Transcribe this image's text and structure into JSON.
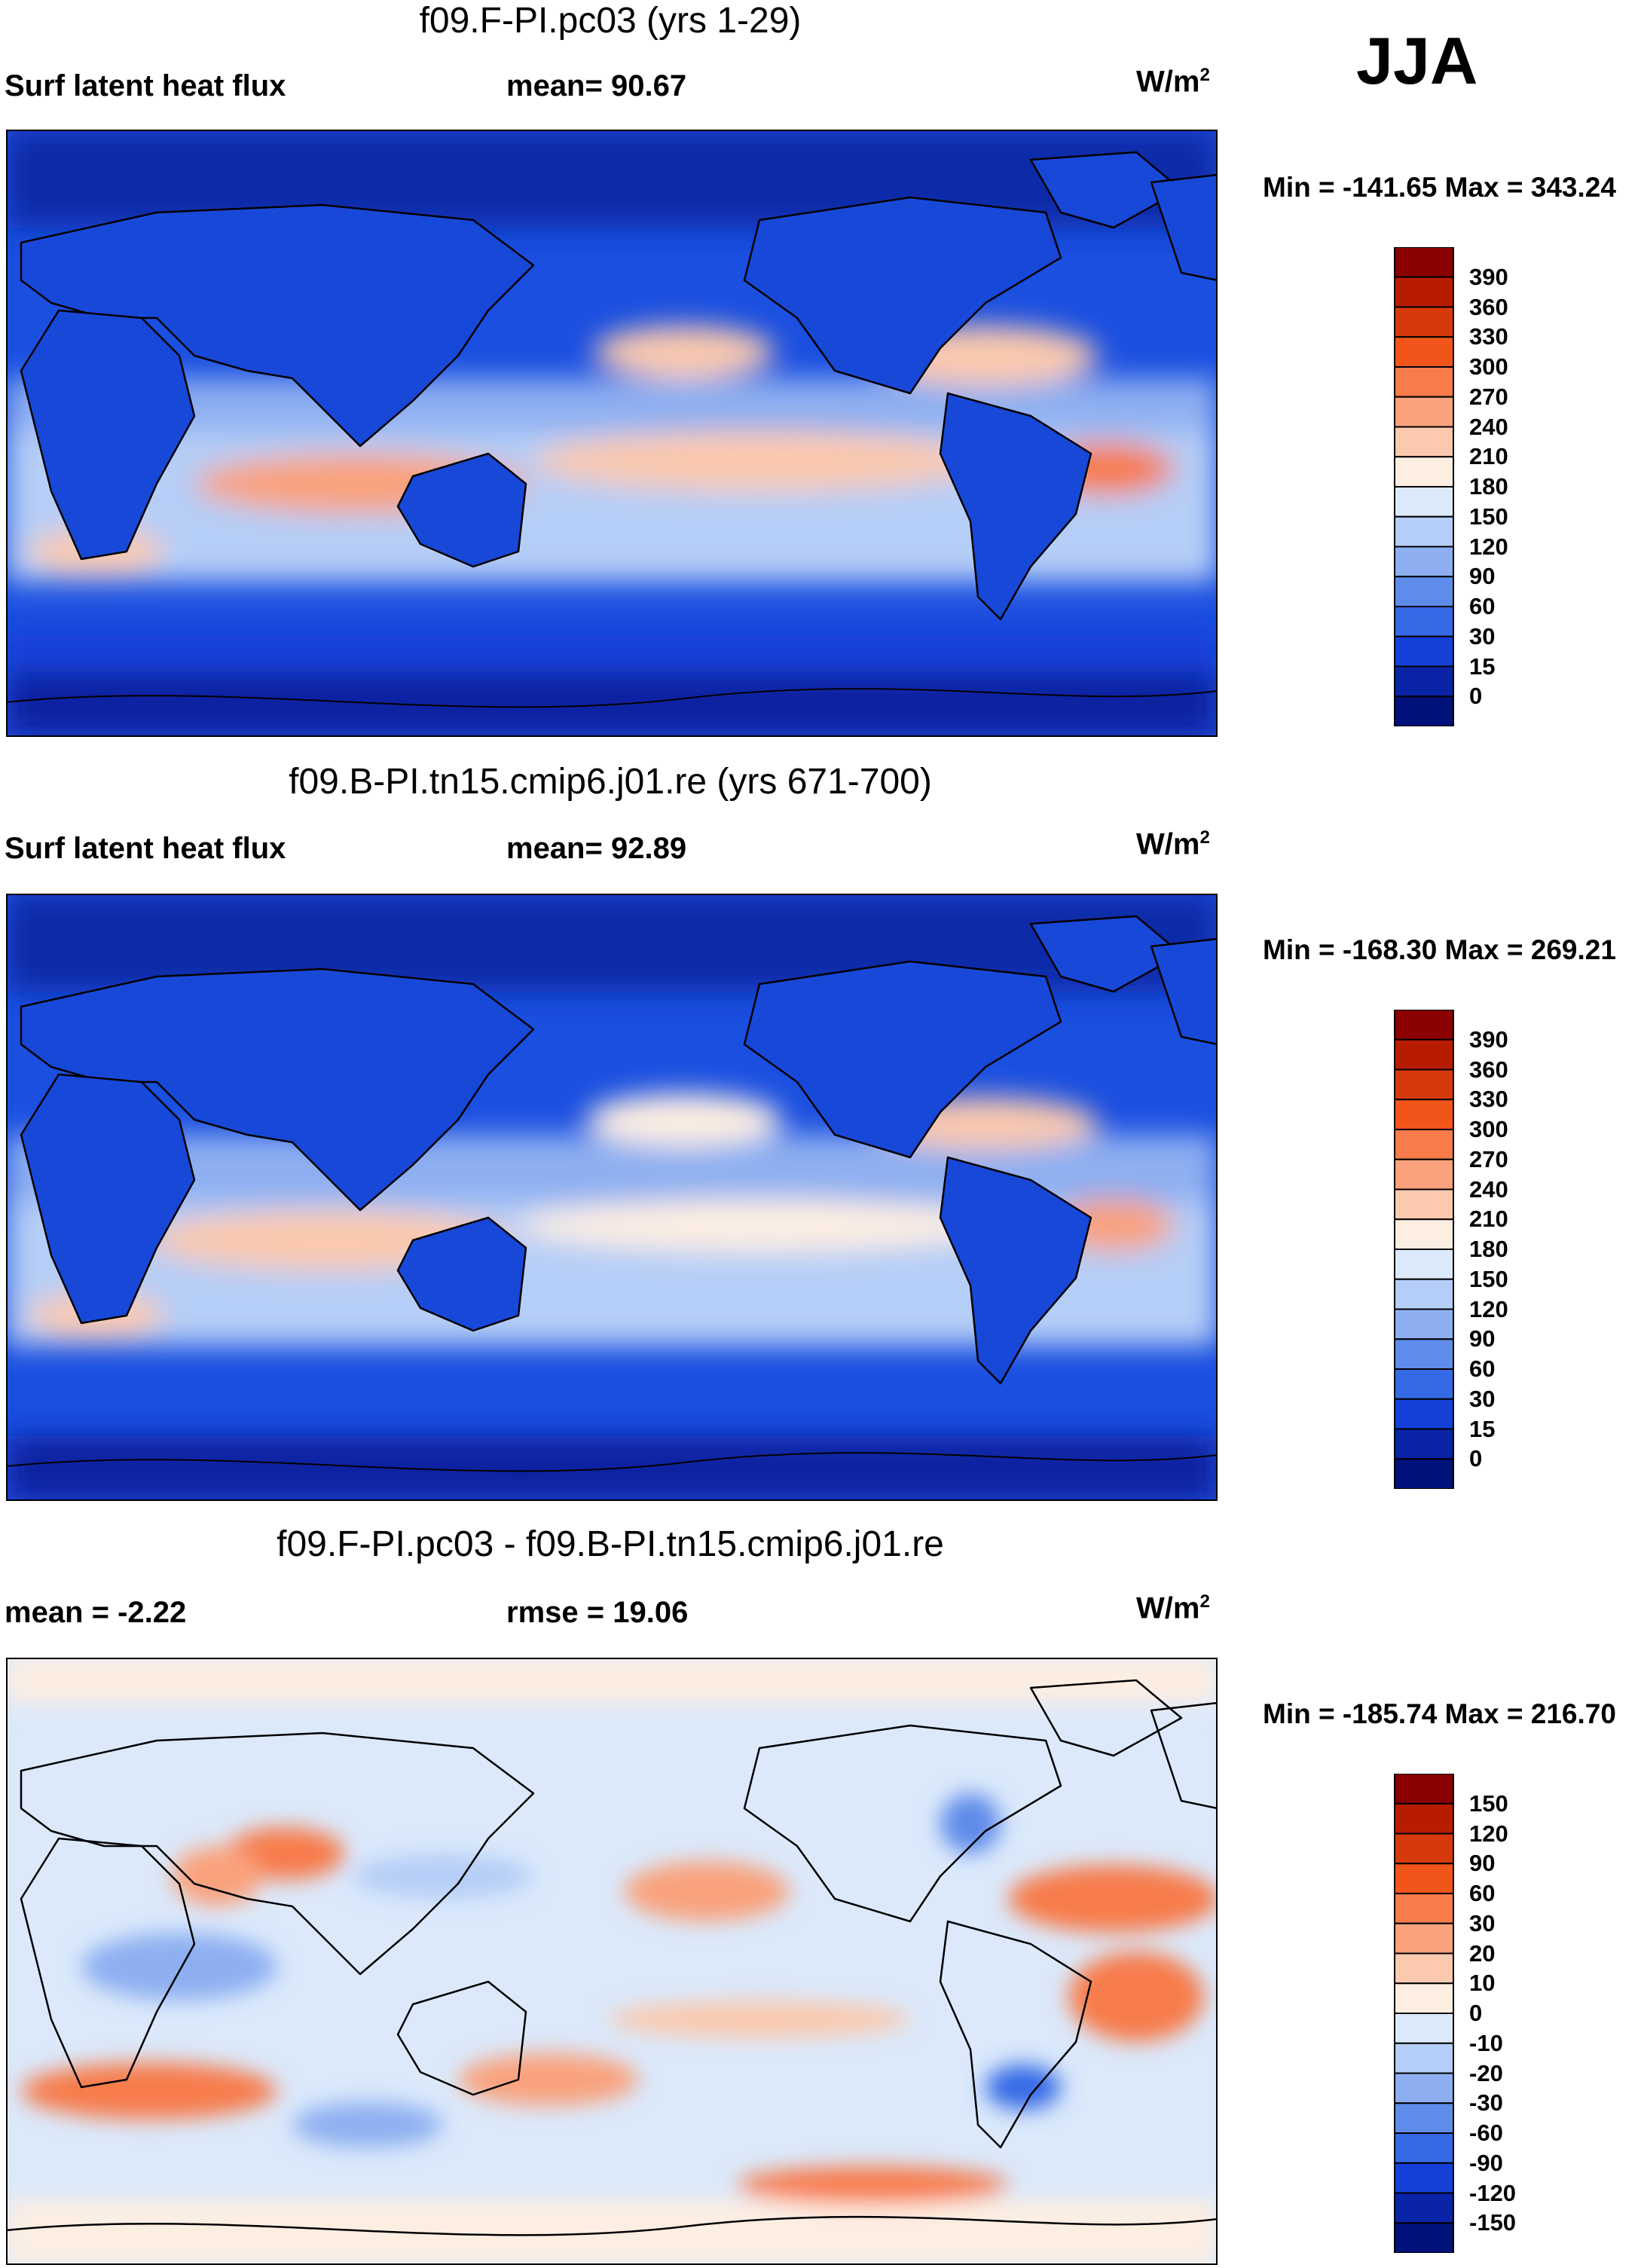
{
  "season": "JJA",
  "panels": [
    {
      "case_title": "f09.F-PI.pc03 (yrs 1-29)",
      "left_label": "Surf latent heat flux",
      "center_label": "mean=  90.67",
      "units": "W/m",
      "units_sup": "2",
      "minmax": "Min = -141.65 Max = 343.24",
      "colorbar": [
        "390",
        "360",
        "330",
        "300",
        "270",
        "240",
        "210",
        "180",
        "150",
        "120",
        "90",
        "60",
        "30",
        "15",
        "0"
      ],
      "colors": [
        "#8b0000",
        "#b81c00",
        "#d63a0c",
        "#f2551a",
        "#f77b4b",
        "#f9a27d",
        "#fbc9ae",
        "#fdeee2",
        "#dbe9fb",
        "#b5cef7",
        "#8daff1",
        "#5f8bea",
        "#356ae6",
        "#1540d8",
        "#0a24a8",
        "#00117a"
      ]
    },
    {
      "case_title": "f09.B-PI.tn15.cmip6.j01.re (yrs 671-700)",
      "left_label": "Surf latent heat flux",
      "center_label": "mean=  92.89",
      "units": "W/m",
      "units_sup": "2",
      "minmax": "Min = -168.30 Max = 269.21",
      "colorbar": [
        "390",
        "360",
        "330",
        "300",
        "270",
        "240",
        "210",
        "180",
        "150",
        "120",
        "90",
        "60",
        "30",
        "15",
        "0"
      ],
      "colors": [
        "#8b0000",
        "#b81c00",
        "#d63a0c",
        "#f2551a",
        "#f77b4b",
        "#f9a27d",
        "#fbc9ae",
        "#fdeee2",
        "#dbe9fb",
        "#b5cef7",
        "#8daff1",
        "#5f8bea",
        "#356ae6",
        "#1540d8",
        "#0a24a8",
        "#00117a"
      ]
    },
    {
      "case_title": "f09.F-PI.pc03 - f09.B-PI.tn15.cmip6.j01.re",
      "left_label": "mean =  -2.22",
      "center_label": "rmse =  19.06",
      "units": "W/m",
      "units_sup": "2",
      "minmax": "Min = -185.74 Max = 216.70",
      "colorbar": [
        "150",
        "120",
        "90",
        "60",
        "30",
        "20",
        "10",
        "0",
        "-10",
        "-20",
        "-30",
        "-60",
        "-90",
        "-120",
        "-150"
      ],
      "colors": [
        "#8b0000",
        "#b81c00",
        "#d63a0c",
        "#f2551a",
        "#f77b4b",
        "#f9a27d",
        "#fbc9ae",
        "#fdeee2",
        "#dbe9fb",
        "#b5cef7",
        "#8daff1",
        "#5f8bea",
        "#356ae6",
        "#1540d8",
        "#0a24a8",
        "#00117a"
      ]
    }
  ],
  "chart_data": {
    "type": "heatmap",
    "title": "Surf latent heat flux (JJA)",
    "units": "W/m2",
    "maps": [
      {
        "name": "f09.F-PI.pc03 (yrs 1-29)",
        "mean": 90.67,
        "min": -141.65,
        "max": 343.24,
        "levels": [
          0,
          15,
          30,
          60,
          90,
          120,
          150,
          180,
          210,
          240,
          270,
          300,
          330,
          360,
          390
        ]
      },
      {
        "name": "f09.B-PI.tn15.cmip6.j01.re (yrs 671-700)",
        "mean": 92.89,
        "min": -168.3,
        "max": 269.21,
        "levels": [
          0,
          15,
          30,
          60,
          90,
          120,
          150,
          180,
          210,
          240,
          270,
          300,
          330,
          360,
          390
        ]
      },
      {
        "name": "f09.F-PI.pc03 - f09.B-PI.tn15.cmip6.j01.re",
        "mean": -2.22,
        "rmse": 19.06,
        "min": -185.74,
        "max": 216.7,
        "levels": [
          -150,
          -120,
          -90,
          -60,
          -30,
          -20,
          -10,
          0,
          10,
          20,
          30,
          60,
          90,
          120,
          150
        ]
      }
    ]
  }
}
